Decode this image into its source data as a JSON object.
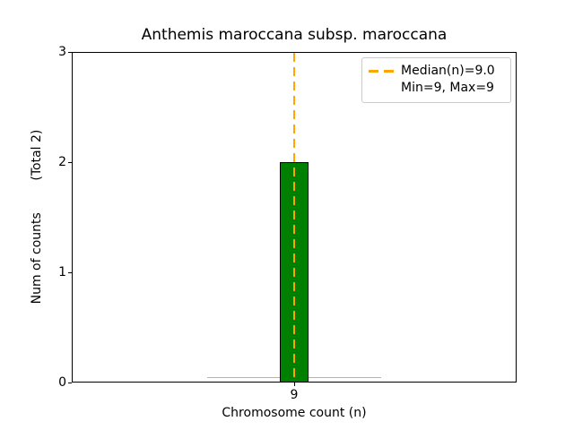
{
  "chart_data": {
    "type": "bar",
    "title": "Anthemis maroccana subsp. maroccana",
    "xlabel": "Chromosome count (n)",
    "ylabel": "Num of counts        (Total 2)",
    "x": [
      9
    ],
    "values": [
      2
    ],
    "total_counts": 2,
    "median": 9.0,
    "min": 9,
    "max": 9,
    "xlim": [
      8,
      10
    ],
    "ylim": [
      0,
      3
    ],
    "xticks": [
      9
    ],
    "yticks": [
      0,
      1,
      2,
      3
    ],
    "bar_width": 0.129,
    "bar_color": "#008000",
    "bar_edge_color": "#000000",
    "median_line_color": "#FFA500",
    "zero_bins_range": [
      8.61,
      9.39
    ],
    "grid": false,
    "legend": {
      "position": "upper right",
      "items": [
        {
          "label": "Median(n)=9.0",
          "handle": "dashed-line",
          "color": "#FFA500"
        },
        {
          "label": "Min=9, Max=9",
          "handle": "none",
          "color": ""
        }
      ]
    }
  }
}
